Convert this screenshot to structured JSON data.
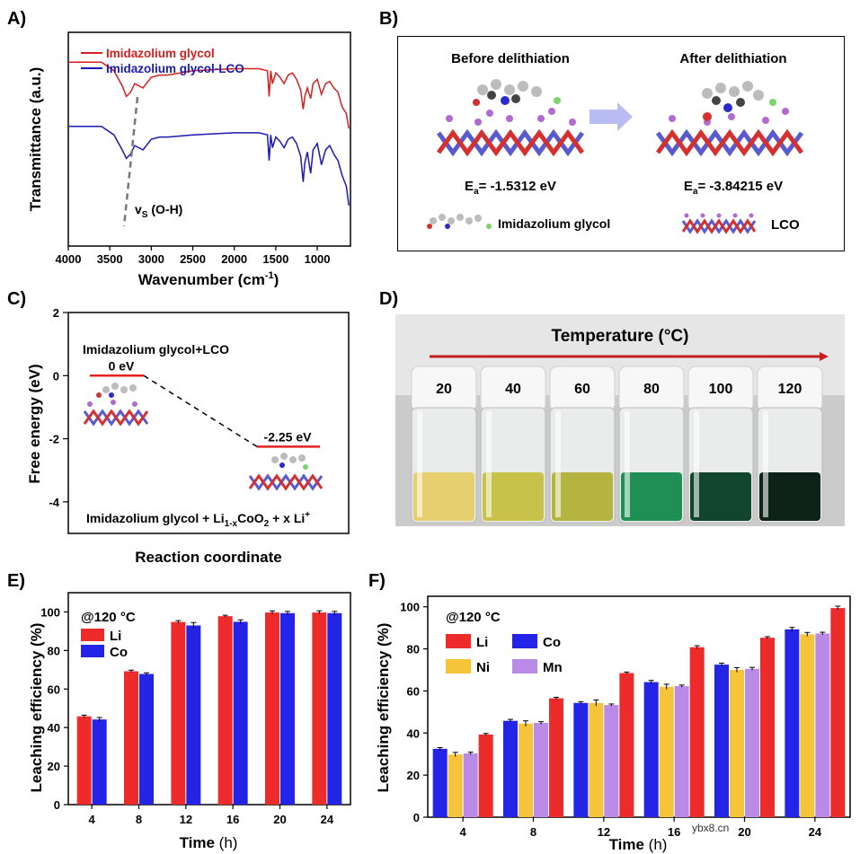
{
  "panels": {
    "A": {
      "label": "A)",
      "legend": [
        "Imidazolium glycol",
        "Imidazolium glycol-LCO"
      ],
      "ylabel": "Transmittance (a.u.)",
      "xlabel_main": "Wavenumber (cm",
      "xlabel_sup": "-1",
      "xlabel_end": ")",
      "annotation_main": "v",
      "annotation_sub": "S",
      "annotation_end": " (O-H)",
      "xticks": [
        "4000",
        "3500",
        "3000",
        "2500",
        "2000",
        "1500",
        "1000"
      ],
      "colors": {
        "glycol": "#d62020",
        "lco": "#1a1ab4"
      }
    },
    "B": {
      "label": "B)",
      "before_title": "Before delithiation",
      "after_title": "After delithiation",
      "ea_before_main": "E",
      "ea_before_sub": "a",
      "ea_before_val": "= -1.5312 eV",
      "ea_after_main": "E",
      "ea_after_sub": "a",
      "ea_after_val": "= -3.84215 eV",
      "legend_molecule": "Imidazolium glycol",
      "legend_lco": "LCO"
    },
    "C": {
      "label": "C)",
      "ylabel": "Free energy (eV)",
      "xlabel": "Reaction coordinate",
      "title": "Imidazolium glycol+LCO",
      "state1": "0 eV",
      "state2": "-2.25 eV",
      "product_a": "Imidazolium glycol + Li",
      "product_sub1": "1-x",
      "product_b": "CoO",
      "product_sub2": "2",
      "product_c": " + x Li",
      "product_sup": "+",
      "yticks": [
        "2",
        "0",
        "-2",
        "-4"
      ]
    },
    "D": {
      "label": "D)",
      "title": "Temperature (°C)",
      "temps": [
        "20",
        "40",
        "60",
        "80",
        "100",
        "120"
      ],
      "liquid_colors": [
        "#e6cf6e",
        "#c9c24a",
        "#b6b441",
        "#1f8f55",
        "#12452e",
        "#0d2218"
      ]
    },
    "E": {
      "label": "E)",
      "condition": "@120 °C",
      "ylabel": "Leaching efficiency (%)",
      "xlabel_main": "Time",
      "xlabel_unit": " (h)",
      "legend": [
        "Li",
        "Co"
      ],
      "colors": {
        "Li": "#ee2b2b",
        "Co": "#2424e6"
      }
    },
    "F": {
      "label": "F)",
      "condition": "@120 °C",
      "ylabel": "Leaching efficiency (%)",
      "xlabel_main": "Time",
      "xlabel_unit": " (h)",
      "legend": [
        "Li",
        "Co",
        "Ni",
        "Mn"
      ],
      "colors": {
        "Li": "#ee2b2b",
        "Co": "#2424e6",
        "Ni": "#f5c43a",
        "Mn": "#b98ae6"
      },
      "watermark": "ybx8.cn"
    }
  },
  "chart_data": [
    {
      "type": "line",
      "panel": "A",
      "title": "",
      "xlabel": "Wavenumber (cm-1)",
      "ylabel": "Transmittance (a.u.)",
      "xlim": [
        4000,
        600
      ],
      "series": [
        {
          "name": "Imidazolium glycol",
          "x": [
            4000,
            3600,
            3450,
            3350,
            3300,
            3250,
            3200,
            3100,
            3000,
            2900,
            2800,
            2500,
            2000,
            1700,
            1600,
            1580,
            1560,
            1540,
            1500,
            1450,
            1400,
            1350,
            1300,
            1250,
            1200,
            1170,
            1150,
            1120,
            1080,
            1050,
            1000,
            950,
            900,
            850,
            800,
            750,
            700,
            650,
            620
          ],
          "y": [
            0.86,
            0.86,
            0.82,
            0.75,
            0.7,
            0.72,
            0.76,
            0.74,
            0.79,
            0.8,
            0.8,
            0.82,
            0.83,
            0.83,
            0.82,
            0.7,
            0.82,
            0.76,
            0.81,
            0.79,
            0.76,
            0.8,
            0.81,
            0.78,
            0.73,
            0.64,
            0.7,
            0.74,
            0.69,
            0.76,
            0.78,
            0.71,
            0.76,
            0.77,
            0.74,
            0.72,
            0.65,
            0.62,
            0.55
          ]
        },
        {
          "name": "Imidazolium glycol-LCO",
          "x": [
            4000,
            3600,
            3450,
            3350,
            3300,
            3250,
            3200,
            3100,
            3000,
            2900,
            2800,
            2500,
            2000,
            1700,
            1600,
            1580,
            1560,
            1540,
            1500,
            1450,
            1400,
            1350,
            1300,
            1250,
            1200,
            1170,
            1150,
            1120,
            1080,
            1050,
            1000,
            950,
            900,
            850,
            800,
            750,
            700,
            650,
            620
          ],
          "y": [
            0.56,
            0.56,
            0.52,
            0.45,
            0.41,
            0.43,
            0.47,
            0.45,
            0.5,
            0.51,
            0.51,
            0.52,
            0.53,
            0.53,
            0.52,
            0.4,
            0.52,
            0.46,
            0.51,
            0.49,
            0.46,
            0.5,
            0.51,
            0.48,
            0.42,
            0.3,
            0.39,
            0.44,
            0.34,
            0.45,
            0.48,
            0.38,
            0.45,
            0.47,
            0.43,
            0.4,
            0.33,
            0.28,
            0.19
          ]
        }
      ]
    },
    {
      "type": "line",
      "panel": "C",
      "xlabel": "Reaction coordinate",
      "ylabel": "Free energy (eV)",
      "ylim": [
        -5,
        2
      ],
      "states": [
        {
          "label": "0 eV",
          "value": 0
        },
        {
          "label": "-2.25 eV",
          "value": -2.25
        }
      ]
    },
    {
      "type": "bar",
      "panel": "E",
      "title": "@120 °C",
      "xlabel": "Time (h)",
      "ylabel": "Leaching efficiency (%)",
      "ylim": [
        0,
        110
      ],
      "categories": [
        "4",
        "8",
        "12",
        "16",
        "20",
        "24"
      ],
      "yticks": [
        0,
        20,
        40,
        60,
        80,
        100
      ],
      "series": [
        {
          "name": "Li",
          "values": [
            45.8,
            69.2,
            94.8,
            97.8,
            99.7,
            99.7
          ],
          "errors": [
            0.6,
            0.6,
            0.7,
            0.5,
            0.8,
            0.9
          ]
        },
        {
          "name": "Co",
          "values": [
            44.2,
            67.8,
            93.0,
            94.9,
            99.4,
            99.4
          ],
          "errors": [
            1.0,
            0.6,
            1.5,
            1.0,
            0.9,
            0.9
          ]
        }
      ]
    },
    {
      "type": "bar",
      "panel": "F",
      "title": "@120 °C",
      "xlabel": "Time (h)",
      "ylabel": "Leaching efficiency (%)",
      "ylim": [
        0,
        105
      ],
      "categories": [
        "4",
        "8",
        "12",
        "16",
        "20",
        "24"
      ],
      "yticks": [
        0,
        20,
        40,
        60,
        80,
        100
      ],
      "series": [
        {
          "name": "Co",
          "values": [
            32.5,
            45.8,
            54.3,
            64.2,
            72.5,
            89.3
          ],
          "errors": [
            0.6,
            0.7,
            0.6,
            0.8,
            0.7,
            0.9
          ]
        },
        {
          "name": "Ni",
          "values": [
            29.8,
            44.5,
            54.3,
            62.0,
            70.0,
            86.9
          ],
          "errors": [
            1.0,
            1.3,
            1.4,
            1.2,
            1.1,
            0.9
          ]
        },
        {
          "name": "Mn",
          "values": [
            30.3,
            44.8,
            53.3,
            62.3,
            70.5,
            87.3
          ],
          "errors": [
            0.6,
            0.6,
            0.5,
            0.5,
            0.7,
            0.6
          ]
        },
        {
          "name": "Li",
          "values": [
            39.3,
            56.5,
            68.5,
            80.8,
            85.3,
            99.4
          ],
          "errors": [
            0.5,
            0.5,
            0.5,
            0.7,
            0.5,
            0.9
          ]
        }
      ]
    }
  ]
}
